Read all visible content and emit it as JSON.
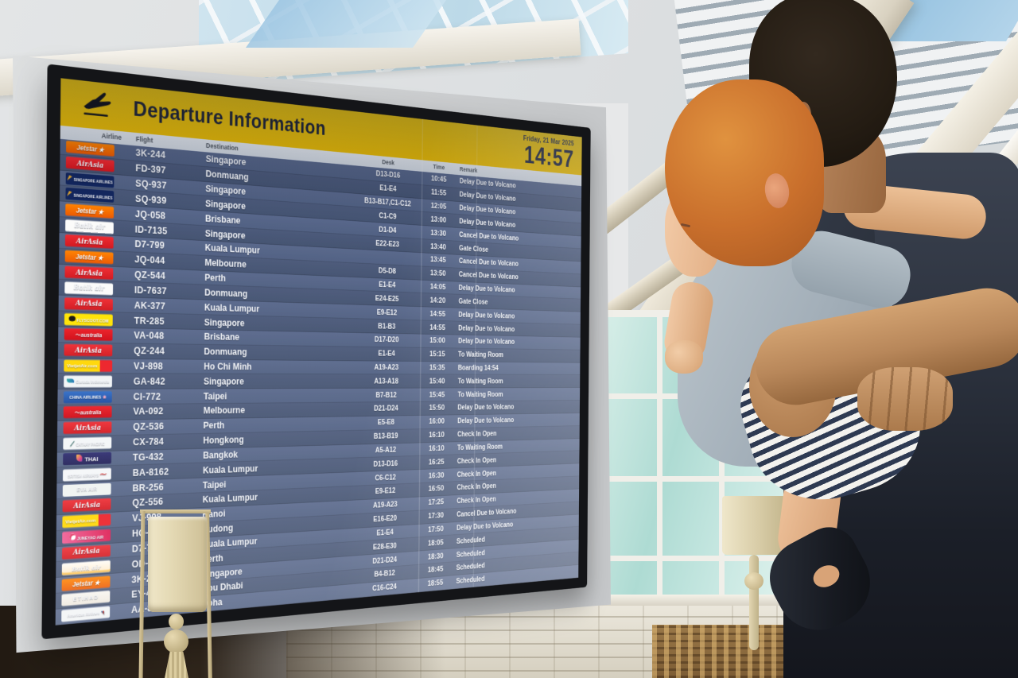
{
  "board": {
    "title": "Departure Information",
    "date": "Friday, 21 Mar 2025",
    "clock": "14:57",
    "columns": [
      "Airline",
      "Flight",
      "Destination",
      "Desk",
      "Time",
      "Remark"
    ],
    "colors": {
      "header_yellow": "#f2c40e",
      "header_text": "#23283a",
      "row_dark": "#4b597a",
      "row_light": "#58678b",
      "row_text": "#f3f5f9"
    },
    "rows": [
      {
        "airline": "Jetstar",
        "airline_label": "Jetstar",
        "logo": "jetstar",
        "star_alliance": false,
        "flight": "3K-244",
        "destination": "Singapore",
        "desk": "D13-D16",
        "time": "10:45",
        "remark": "Delay Due to Volcano"
      },
      {
        "airline": "AirAsia",
        "airline_label": "AirAsia",
        "logo": "airasia",
        "star_alliance": false,
        "flight": "FD-397",
        "destination": "Donmuang",
        "desk": "E1-E4",
        "time": "11:55",
        "remark": "Delay Due to Volcano"
      },
      {
        "airline": "Singapore Airlines",
        "airline_label": "SINGAPORE AIRLINES",
        "logo": "sq",
        "star_alliance": true,
        "flight": "SQ-937",
        "destination": "Singapore",
        "desk": "B13-B17,C1-C12",
        "time": "12:05",
        "remark": "Delay Due to Volcano"
      },
      {
        "airline": "Singapore Airlines",
        "airline_label": "SINGAPORE AIRLINES",
        "logo": "sq",
        "star_alliance": true,
        "flight": "SQ-939",
        "destination": "Singapore",
        "desk": "C1-C9",
        "time": "13:00",
        "remark": "Delay Due to Volcano"
      },
      {
        "airline": "Jetstar",
        "airline_label": "Jetstar",
        "logo": "jetstar",
        "star_alliance": false,
        "flight": "JQ-058",
        "destination": "Brisbane",
        "desk": "D1-D4",
        "time": "13:30",
        "remark": "Cancel Due to Volcano"
      },
      {
        "airline": "Batik Air",
        "airline_label": "Batik air",
        "logo": "batik",
        "star_alliance": false,
        "flight": "ID-7135",
        "destination": "Singapore",
        "desk": "E22-E23",
        "time": "13:40",
        "remark": "Gate Close"
      },
      {
        "airline": "AirAsia",
        "airline_label": "AirAsia",
        "logo": "airasia",
        "star_alliance": false,
        "flight": "D7-799",
        "destination": "Kuala Lumpur",
        "desk": "",
        "time": "13:45",
        "remark": "Cancel Due to Volcano"
      },
      {
        "airline": "Jetstar",
        "airline_label": "Jetstar",
        "logo": "jetstar",
        "star_alliance": false,
        "flight": "JQ-044",
        "destination": "Melbourne",
        "desk": "D5-D8",
        "time": "13:50",
        "remark": "Cancel Due to Volcano"
      },
      {
        "airline": "AirAsia",
        "airline_label": "AirAsia",
        "logo": "airasia",
        "star_alliance": false,
        "flight": "QZ-544",
        "destination": "Perth",
        "desk": "E1-E4",
        "time": "14:05",
        "remark": "Delay Due to Volcano"
      },
      {
        "airline": "Batik Air",
        "airline_label": "Batik air",
        "logo": "batik",
        "star_alliance": false,
        "flight": "ID-7637",
        "destination": "Donmuang",
        "desk": "E24-E25",
        "time": "14:20",
        "remark": "Gate Close"
      },
      {
        "airline": "AirAsia",
        "airline_label": "AirAsia",
        "logo": "airasia",
        "star_alliance": false,
        "flight": "AK-377",
        "destination": "Kuala Lumpur",
        "desk": "E9-E12",
        "time": "14:55",
        "remark": "Delay Due to Volcano"
      },
      {
        "airline": "Scoot",
        "airline_label": "FLYSCOOT.COM",
        "logo": "scoot",
        "star_alliance": false,
        "flight": "TR-285",
        "destination": "Singapore",
        "desk": "B1-B3",
        "time": "14:55",
        "remark": "Delay Due to Volcano"
      },
      {
        "airline": "Virgin Australia",
        "airline_label": "australia",
        "logo": "virgin",
        "star_alliance": false,
        "flight": "VA-048",
        "destination": "Brisbane",
        "desk": "D17-D20",
        "time": "15:00",
        "remark": "Delay Due to Volcano"
      },
      {
        "airline": "AirAsia",
        "airline_label": "AirAsia",
        "logo": "airasia",
        "star_alliance": false,
        "flight": "QZ-244",
        "destination": "Donmuang",
        "desk": "E1-E4",
        "time": "15:15",
        "remark": "To Waiting Room"
      },
      {
        "airline": "Vietjet Air",
        "airline_label": "VietjetAir.com",
        "logo": "vietjet",
        "star_alliance": false,
        "flight": "VJ-898",
        "destination": "Ho Chi Minh",
        "desk": "A19-A23",
        "time": "15:35",
        "remark": "Boarding 14:54"
      },
      {
        "airline": "Garuda Indonesia",
        "airline_label": "Garuda Indonesia",
        "logo": "garuda",
        "star_alliance": false,
        "flight": "GA-842",
        "destination": "Singapore",
        "desk": "A13-A18",
        "time": "15:40",
        "remark": "To Waiting Room"
      },
      {
        "airline": "China Airlines",
        "airline_label": "CHINA AIRLINES",
        "logo": "china",
        "star_alliance": false,
        "flight": "CI-772",
        "destination": "Taipei",
        "desk": "B7-B12",
        "time": "15:45",
        "remark": "To Waiting Room"
      },
      {
        "airline": "Virgin Australia",
        "airline_label": "australia",
        "logo": "virgin",
        "star_alliance": false,
        "flight": "VA-092",
        "destination": "Melbourne",
        "desk": "D21-D24",
        "time": "15:50",
        "remark": "Delay Due to Volcano"
      },
      {
        "airline": "AirAsia",
        "airline_label": "AirAsia",
        "logo": "airasia",
        "star_alliance": false,
        "flight": "QZ-536",
        "destination": "Perth",
        "desk": "E5-E8",
        "time": "16:00",
        "remark": "Delay Due to Volcano"
      },
      {
        "airline": "Cathay Pacific",
        "airline_label": "CATHAY PACIFIC",
        "logo": "cathay",
        "star_alliance": false,
        "flight": "CX-784",
        "destination": "Hongkong",
        "desk": "B13-B19",
        "time": "16:10",
        "remark": "Check In Open"
      },
      {
        "airline": "Thai Airways",
        "airline_label": "THAI",
        "logo": "thai",
        "star_alliance": true,
        "flight": "TG-432",
        "destination": "Bangkok",
        "desk": "A5-A12",
        "time": "16:10",
        "remark": "To Waiting Room"
      },
      {
        "airline": "British Airways",
        "airline_label": "BRITISH AIRWAYS",
        "logo": "ba",
        "star_alliance": false,
        "flight": "BA-8162",
        "destination": "Kuala Lumpur",
        "desk": "D13-D16",
        "time": "16:25",
        "remark": "Check In Open"
      },
      {
        "airline": "EVA Air",
        "airline_label": "EVA AIR",
        "logo": "eva",
        "star_alliance": true,
        "flight": "BR-256",
        "destination": "Taipei",
        "desk": "C6-C12",
        "time": "16:30",
        "remark": "Check In Open"
      },
      {
        "airline": "AirAsia",
        "airline_label": "AirAsia",
        "logo": "airasia",
        "star_alliance": false,
        "flight": "QZ-556",
        "destination": "Kuala Lumpur",
        "desk": "E9-E12",
        "time": "16:50",
        "remark": "Check In Open"
      },
      {
        "airline": "Vietjet Air",
        "airline_label": "VietjetAir.com",
        "logo": "vietjet",
        "star_alliance": false,
        "flight": "VJ-998",
        "destination": "Hanoi",
        "desk": "A19-A23",
        "time": "17:25",
        "remark": "Check In Open"
      },
      {
        "airline": "Juneyao Air",
        "airline_label": "JUNEYAO AIR",
        "logo": "juneyao",
        "star_alliance": false,
        "flight": "HO-1",
        "destination": "Pudong",
        "desk": "E16-E20",
        "time": "17:30",
        "remark": "Cancel Due to Volcano"
      },
      {
        "airline": "AirAsia",
        "airline_label": "AirAsia",
        "logo": "airasia",
        "star_alliance": false,
        "flight": "D7-7",
        "destination": "Kuala Lumpur",
        "desk": "E1-E4",
        "time": "17:50",
        "remark": "Delay Due to Volcano"
      },
      {
        "airline": "Batik Air",
        "airline_label": "Batik air",
        "logo": "batikmy",
        "star_alliance": false,
        "flight": "OD-1",
        "destination": "Perth",
        "desk": "E28-E30",
        "time": "18:05",
        "remark": "Scheduled"
      },
      {
        "airline": "Jetstar",
        "airline_label": "Jetstar",
        "logo": "jetstar",
        "star_alliance": false,
        "flight": "3K-2",
        "destination": "Singapore",
        "desk": "D21-D24",
        "time": "18:30",
        "remark": "Scheduled"
      },
      {
        "airline": "Etihad",
        "airline_label": "ETIHAD",
        "logo": "etihad",
        "star_alliance": false,
        "flight": "EY-47",
        "destination": "Abu Dhabi",
        "desk": "B4-B12",
        "time": "18:45",
        "remark": "Scheduled"
      },
      {
        "airline": "American Airlines",
        "airline_label": "American Airlines",
        "logo": "american",
        "star_alliance": false,
        "flight": "AA-854",
        "destination": "Doha",
        "desk": "C16-C24",
        "time": "18:55",
        "remark": "Scheduled"
      }
    ]
  }
}
